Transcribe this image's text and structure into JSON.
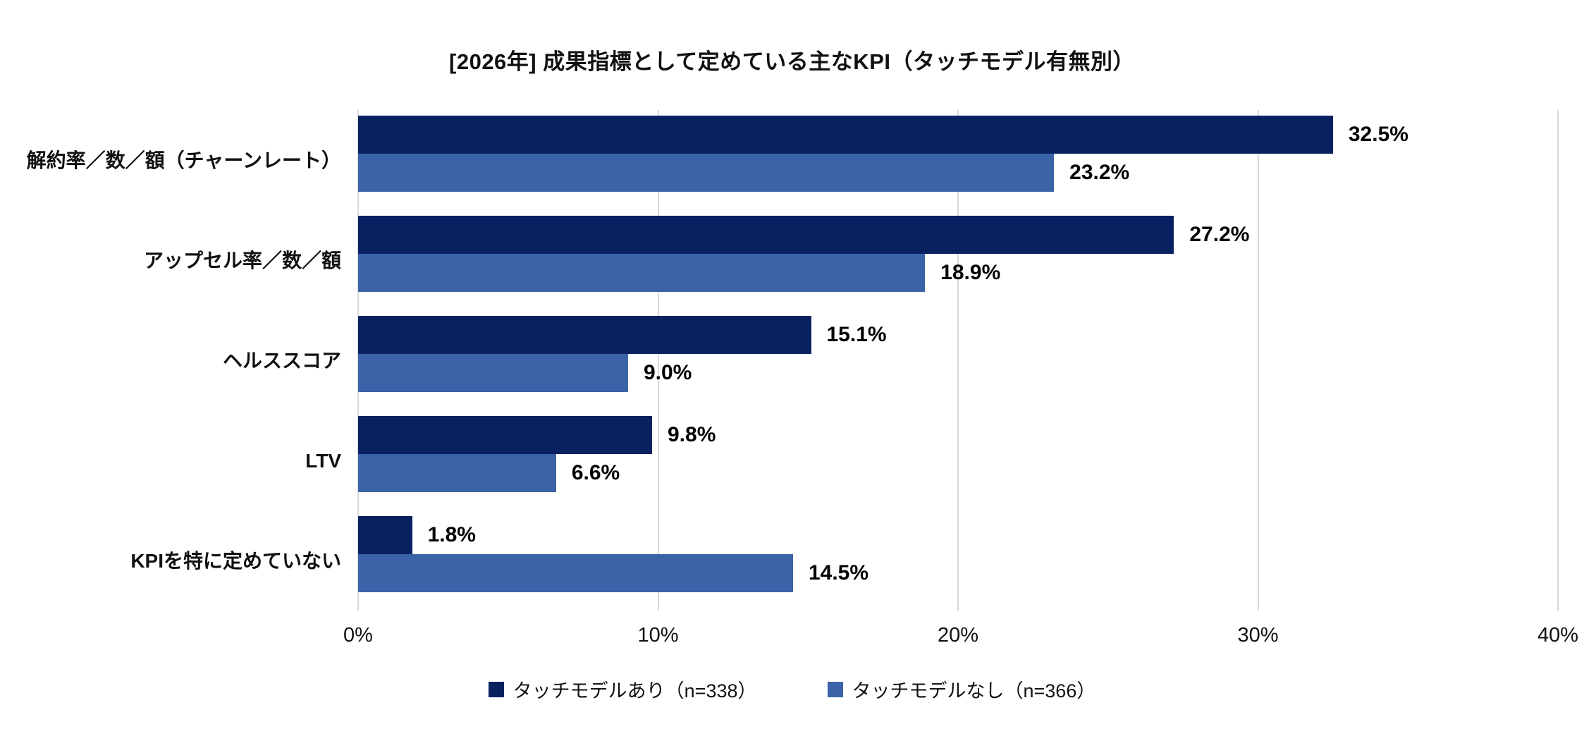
{
  "chart_data": {
    "type": "bar",
    "orientation": "horizontal",
    "title": "[2026年] 成果指標として定めている主なKPI（タッチモデル有無別）",
    "categories": [
      "解約率／数／額（チャーンレート）",
      "アップセル率／数／額",
      "ヘルススコア",
      "LTV",
      "KPIを特に定めていない"
    ],
    "series": [
      {
        "name": "タッチモデルあり（n=338）",
        "color": "#0A2161",
        "values": [
          32.5,
          27.2,
          15.1,
          9.8,
          1.8
        ]
      },
      {
        "name": "タッチモデルなし（n=366）",
        "color": "#3B63A8",
        "values": [
          23.2,
          18.9,
          9.0,
          6.6,
          14.5
        ]
      }
    ],
    "value_suffix": "%",
    "xlim": [
      0,
      40
    ],
    "x_ticks": [
      "0%",
      "10%",
      "20%",
      "30%",
      "40%"
    ],
    "grid": true,
    "legend_position": "bottom"
  },
  "colors": {
    "series1": "#0A2161",
    "series2": "#3B63A8",
    "gridline": "#D9D9D9",
    "text": "#111111",
    "background": "#FFFFFF"
  }
}
